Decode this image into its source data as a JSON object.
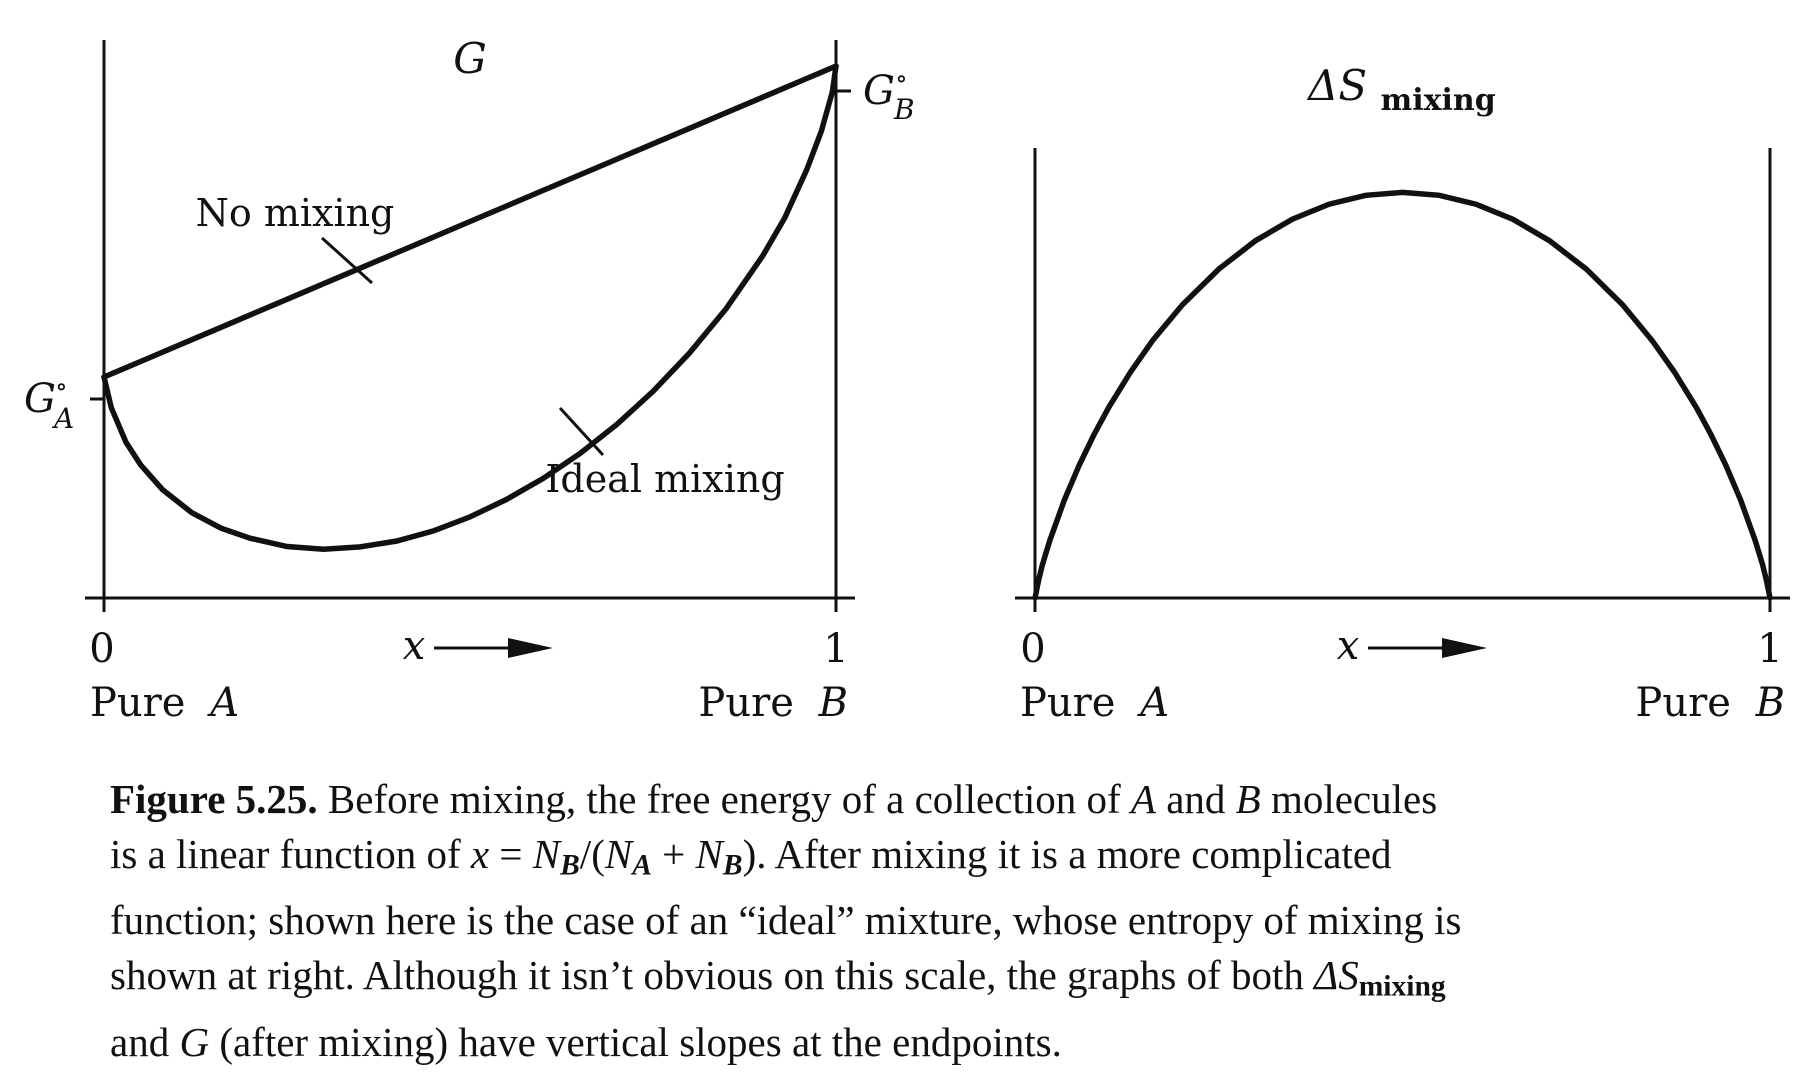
{
  "chart_data": [
    {
      "type": "line",
      "title": "G",
      "x": [
        0,
        0.01,
        0.03,
        0.05,
        0.08,
        0.12,
        0.16,
        0.2,
        0.25,
        0.3,
        0.35,
        0.4,
        0.45,
        0.5,
        0.55,
        0.6,
        0.65,
        0.7,
        0.75,
        0.8,
        0.85,
        0.9,
        0.93,
        0.96,
        0.98,
        0.995,
        1
      ],
      "series": [
        {
          "name": "No mixing",
          "values": [
            0.48,
            0.488,
            0.504,
            0.52,
            0.544,
            0.576,
            0.608,
            0.64,
            0.68,
            0.72,
            0.76,
            0.8,
            0.84,
            0.88,
            0.92,
            0.96,
            1.0,
            1.04,
            1.08,
            1.12,
            1.16,
            1.2,
            1.224,
            1.248,
            1.264,
            1.276,
            1.28
          ]
        },
        {
          "name": "Ideal mixing",
          "values": [
            0.48,
            0.401,
            0.312,
            0.254,
            0.19,
            0.131,
            0.091,
            0.065,
            0.044,
            0.037,
            0.043,
            0.058,
            0.084,
            0.12,
            0.165,
            0.219,
            0.283,
            0.357,
            0.443,
            0.542,
            0.656,
            0.792,
            0.89,
            1.013,
            1.113,
            1.213,
            1.28
          ]
        }
      ],
      "annotations": [
        "No mixing",
        "Ideal mixing"
      ],
      "y_tick_labels": {
        "G_A": "G",
        "G_B": "G"
      },
      "y_tick_label_superscript": "∘",
      "y_tick_label_subscripts": {
        "G_A": "A",
        "G_B": "B"
      },
      "xlabel": "x",
      "x_ticks": [
        "0",
        "1"
      ],
      "x_end_labels": {
        "left_prefix": "Pure",
        "left_var": "A",
        "right_prefix": "Pure",
        "right_var": "B"
      },
      "xlim": [
        0,
        1
      ],
      "ylim": [
        -0.05,
        1.45
      ],
      "grid": false
    },
    {
      "type": "line",
      "title": "ΔS",
      "title_subscript": "mixing",
      "x": [
        0,
        0.005,
        0.01,
        0.02,
        0.04,
        0.06,
        0.08,
        0.1,
        0.13,
        0.16,
        0.2,
        0.25,
        0.3,
        0.35,
        0.4,
        0.45,
        0.5,
        0.55,
        0.6,
        0.65,
        0.7,
        0.75,
        0.8,
        0.84,
        0.87,
        0.9,
        0.92,
        0.94,
        0.96,
        0.98,
        0.99,
        0.995,
        1
      ],
      "series": [
        {
          "name": "",
          "values": [
            0,
            0.045,
            0.081,
            0.141,
            0.242,
            0.327,
            0.402,
            0.469,
            0.557,
            0.635,
            0.722,
            0.811,
            0.881,
            0.934,
            0.971,
            0.993,
            1.0,
            0.993,
            0.971,
            0.934,
            0.881,
            0.811,
            0.722,
            0.634,
            0.557,
            0.469,
            0.402,
            0.327,
            0.242,
            0.141,
            0.081,
            0.045,
            0
          ]
        }
      ],
      "xlabel": "x",
      "x_ticks": [
        "0",
        "1"
      ],
      "x_end_labels": {
        "left_prefix": "Pure",
        "left_var": "A",
        "right_prefix": "Pure",
        "right_var": "B"
      },
      "xlim": [
        0,
        1
      ],
      "ylim": [
        0,
        1.08
      ],
      "grid": false
    }
  ],
  "caption": {
    "label": "Figure 5.25.",
    "line1": [
      " Before mixing, the free energy of a collection of ",
      "A",
      " and ",
      "B",
      " molecules"
    ],
    "line2": [
      "is a linear function of ",
      "x",
      " = ",
      "N",
      "B",
      "/(",
      "N",
      "A",
      " + ",
      "N",
      "B",
      "). After mixing it is a more complicated"
    ],
    "line3": "function; shown here is the case of an “ideal” mixture, whose entropy of mixing is",
    "line4": [
      "shown at right. Although it isn’t obvious on this scale, the graphs of both ",
      "ΔS",
      "mixing"
    ],
    "line5": [
      "and ",
      "G",
      " (after mixing) have vertical slopes at the endpoints."
    ]
  },
  "colors": {
    "ink": "#111111",
    "background": "#ffffff"
  }
}
